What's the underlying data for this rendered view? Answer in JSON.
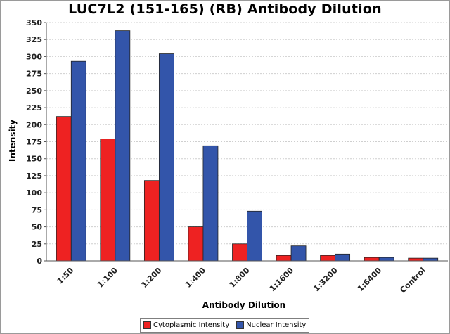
{
  "chart_data": {
    "type": "bar",
    "title": "LUC7L2 (151-165) (RB) Antibody Dilution",
    "xlabel": "Antibody Dilution",
    "ylabel": "Intensity",
    "ylim": [
      0,
      350
    ],
    "yticks": [
      0,
      25,
      50,
      75,
      100,
      125,
      150,
      175,
      200,
      225,
      250,
      275,
      300,
      325,
      350
    ],
    "grid": true,
    "legend_position": "bottom",
    "categories": [
      "1:50",
      "1:100",
      "1:200",
      "1:400",
      "1:800",
      "1:1600",
      "1:3200",
      "1:6400",
      "Control"
    ],
    "series": [
      {
        "name": "Cytoplasmic Intensity",
        "color": "#ee2222",
        "values": [
          212,
          179,
          118,
          50,
          25,
          8,
          8,
          5,
          4
        ]
      },
      {
        "name": "Nuclear Intensity",
        "color": "#3355aa",
        "values": [
          293,
          338,
          304,
          169,
          73,
          22,
          10,
          5,
          4
        ]
      }
    ]
  }
}
